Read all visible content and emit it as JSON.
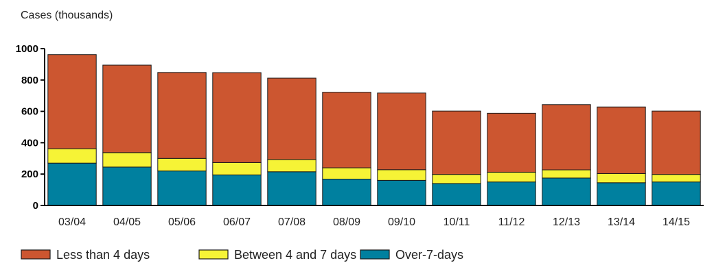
{
  "chart_data": {
    "type": "bar",
    "stacked": true,
    "title": "",
    "ylabel": "Cases (thousands)",
    "xlabel": "",
    "ylim": [
      0,
      1000
    ],
    "yticks": [
      0,
      200,
      400,
      600,
      800,
      1000
    ],
    "grid": false,
    "legend_position": "bottom-left",
    "categories": [
      "03/04",
      "04/05",
      "05/06",
      "06/07",
      "07/08",
      "08/09",
      "09/10",
      "10/11",
      "11/12",
      "12/13",
      "13/14",
      "14/15"
    ],
    "series": [
      {
        "name": "Over-7-days",
        "color": "#00809F",
        "values": [
          270,
          245,
          220,
          195,
          215,
          168,
          160,
          140,
          150,
          175,
          145,
          150
        ]
      },
      {
        "name": "Between 4 and 7 days",
        "color": "#F6F336",
        "values": [
          92,
          92,
          80,
          78,
          78,
          72,
          68,
          58,
          62,
          52,
          58,
          48
        ]
      },
      {
        "name": "Less than 4 days",
        "color": "#CC5630",
        "values": [
          600,
          558,
          548,
          574,
          519,
          482,
          489,
          404,
          376,
          416,
          425,
          404
        ]
      }
    ],
    "legend_order": [
      "Less than 4 days",
      "Between 4 and 7 days",
      "Over-7-days"
    ]
  }
}
